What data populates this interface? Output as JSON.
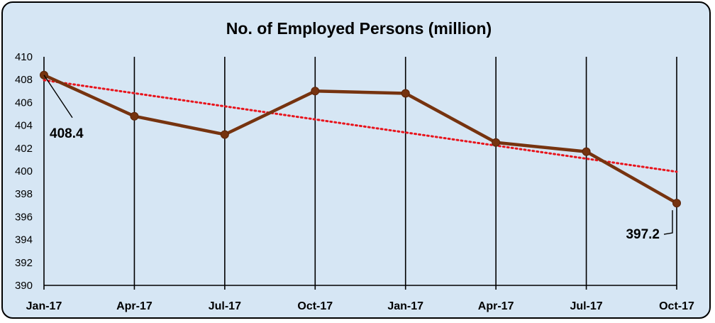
{
  "chart_data": {
    "type": "line",
    "title": "No. of Employed Persons (million)",
    "categories": [
      "Jan-17",
      "Apr-17",
      "Jul-17",
      "Oct-17",
      "Jan-17",
      "Apr-17",
      "Jul-17",
      "Oct-17"
    ],
    "series": [
      {
        "values": [
          408.4,
          404.8,
          403.2,
          407.0,
          406.8,
          402.5,
          401.7,
          397.2
        ],
        "color": "#76330f"
      }
    ],
    "trendline": {
      "type": "linear",
      "color": "#e8141c",
      "style": "dotted"
    },
    "data_labels": [
      {
        "index": 0,
        "text": "408.4"
      },
      {
        "index": 7,
        "text": "397.2"
      }
    ],
    "ylim": [
      390,
      410
    ],
    "yticks": [
      390,
      392,
      394,
      396,
      398,
      400,
      402,
      404,
      406,
      408,
      410
    ],
    "xlabel": "",
    "ylabel": "",
    "grid": "vertical",
    "legend": "none",
    "background": "#d6e6f4"
  }
}
